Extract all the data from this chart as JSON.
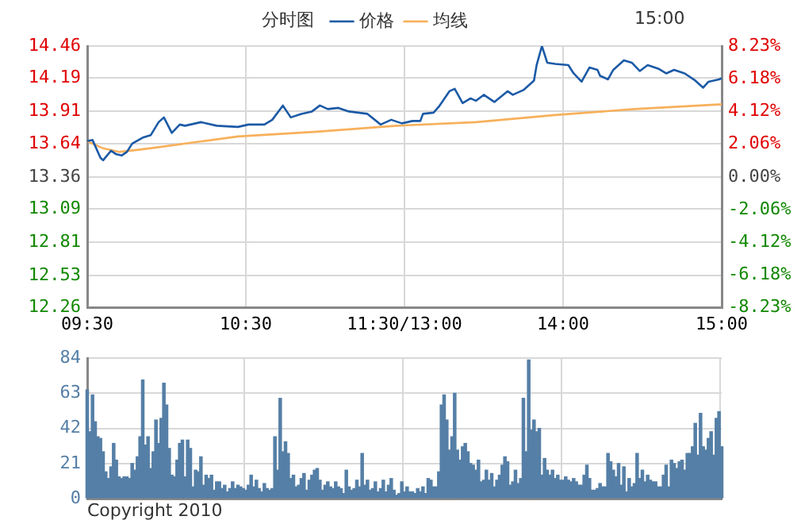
{
  "chart_data": [
    {
      "type": "line",
      "title": "分时图",
      "legend": "top",
      "grid": true,
      "marker": "none",
      "categories": [
        "09:30",
        null,
        null,
        null,
        null,
        null,
        null,
        null,
        null,
        null,
        null,
        null,
        null,
        null,
        null,
        null,
        null,
        null,
        null,
        null,
        null,
        null,
        null,
        null,
        null,
        null,
        null,
        null,
        null,
        null,
        null,
        null,
        null,
        null,
        null,
        null,
        null,
        null,
        null,
        null,
        null,
        null,
        null,
        null,
        null,
        null,
        null,
        null,
        null,
        null,
        null,
        null,
        null,
        null,
        null,
        null,
        null,
        null,
        null,
        null,
        "10:30",
        null,
        null,
        null,
        null,
        null,
        null,
        null,
        null,
        null,
        null,
        null,
        null,
        null,
        null,
        null,
        null,
        null,
        null,
        null,
        null,
        null,
        null,
        null,
        null,
        null,
        null,
        null,
        null,
        null,
        null,
        null,
        null,
        null,
        null,
        null,
        null,
        null,
        null,
        null,
        null,
        null,
        null,
        null,
        null,
        null,
        null,
        null,
        null,
        null,
        null,
        null,
        null,
        null,
        null,
        null,
        null,
        null,
        null,
        null,
        "11:30/13:00",
        null,
        null,
        null,
        null,
        null,
        null,
        null,
        null,
        null,
        null,
        null,
        null,
        null,
        null,
        null,
        null,
        null,
        null,
        null,
        null,
        null,
        null,
        null,
        null,
        null,
        null,
        null,
        null,
        null,
        null,
        null,
        null,
        null,
        null,
        null,
        null,
        null,
        null,
        null,
        null,
        null,
        null,
        null,
        null,
        null,
        null,
        null,
        null,
        null,
        null,
        null,
        null,
        null,
        null,
        null,
        null,
        null,
        null,
        null,
        "14:00",
        null,
        null,
        null,
        null,
        null,
        null,
        null,
        null,
        null,
        null,
        null,
        null,
        null,
        null,
        null,
        null,
        null,
        null,
        null,
        null,
        null,
        null,
        null,
        null,
        null,
        null,
        null,
        null,
        null,
        null,
        null,
        null,
        null,
        null,
        null,
        null,
        null,
        null,
        null,
        null,
        null,
        null,
        null,
        null,
        null,
        null,
        null,
        null,
        null,
        null,
        null,
        null,
        null,
        null,
        null,
        null,
        null,
        null,
        null,
        "15:00"
      ],
      "ylim": [
        12.26,
        14.46
      ],
      "yticks": [
        12.26,
        12.53,
        12.81,
        13.09,
        13.36,
        13.64,
        13.91,
        14.19,
        14.46
      ],
      "y2lim": [
        -8.23,
        8.23
      ],
      "y2ticks": [
        {
          "value": -8.23,
          "label": "-8.23%"
        },
        {
          "value": -6.18,
          "label": "-6.18%"
        },
        {
          "value": -4.12,
          "label": "-4.12%"
        },
        {
          "value": -2.06,
          "label": "-2.06%"
        },
        {
          "value": 0,
          "label": "0.00%"
        },
        {
          "value": 2.06,
          "label": "2.06%"
        },
        {
          "value": 4.12,
          "label": "4.12%"
        },
        {
          "value": 6.18,
          "label": "6.18%"
        },
        {
          "value": 8.23,
          "label": "8.23%"
        }
      ],
      "annotations": [
        "15:00"
      ],
      "series": [
        {
          "name": "价格",
          "color": "#1c5aa6",
          "values": [
            13.66,
            null,
            13.67,
            null,
            null,
            13.52,
            13.5,
            null,
            null,
            13.58,
            null,
            13.55,
            null,
            13.54,
            null,
            13.57,
            null,
            13.64,
            null,
            null,
            null,
            13.69,
            null,
            null,
            13.71,
            null,
            null,
            13.82,
            null,
            13.86,
            null,
            null,
            13.73,
            null,
            null,
            13.8,
            null,
            13.79,
            null,
            null,
            null,
            null,
            null,
            13.82,
            null,
            null,
            null,
            null,
            null,
            13.79,
            null,
            null,
            null,
            null,
            null,
            null,
            null,
            13.78,
            null,
            null,
            null,
            13.8,
            null,
            null,
            null,
            null,
            null,
            13.8,
            null,
            null,
            13.84,
            null,
            null,
            null,
            13.96,
            null,
            null,
            13.86,
            null,
            null,
            null,
            13.89,
            null,
            null,
            null,
            13.91,
            null,
            null,
            13.96,
            null,
            null,
            13.93,
            null,
            null,
            null,
            13.94,
            null,
            null,
            null,
            13.91,
            null,
            null,
            null,
            null,
            null,
            null,
            13.89,
            null,
            null,
            null,
            null,
            13.8,
            null,
            null,
            null,
            13.84,
            null,
            null,
            null,
            13.81,
            null,
            null,
            null,
            13.83,
            null,
            null,
            13.83,
            13.89,
            null,
            null,
            null,
            13.9,
            null,
            13.95,
            null,
            null,
            null,
            14.08,
            null,
            14.1,
            null,
            null,
            13.98,
            null,
            null,
            14.02,
            null,
            14,
            null,
            null,
            14.05,
            null,
            null,
            null,
            13.99,
            null,
            null,
            null,
            null,
            14.08,
            null,
            14.05,
            null,
            null,
            null,
            14.09,
            null,
            null,
            null,
            14.17,
            14.3,
            null,
            14.46,
            null,
            14.32,
            null,
            null,
            14.31,
            null,
            null,
            null,
            null,
            14.3,
            null,
            14.23,
            null,
            null,
            14.16,
            null,
            null,
            14.28,
            null,
            null,
            14.26,
            14.21,
            null,
            null,
            14.18,
            null,
            14.26,
            null,
            null,
            null,
            14.34,
            null,
            null,
            14.32,
            null,
            null,
            14.25,
            null,
            null,
            14.3,
            null,
            null,
            null,
            14.27,
            null,
            null,
            14.23,
            null,
            null,
            14.26,
            null,
            null,
            null,
            14.23,
            null,
            null,
            null,
            14.17,
            null,
            null,
            14.11,
            null,
            14.16,
            null,
            14.17,
            null,
            14.18,
            14.19
          ]
        },
        {
          "name": "均线",
          "color": "#f7b05b",
          "values": [
            13.66,
            null,
            null,
            null,
            null,
            null,
            13.6,
            null,
            null,
            null,
            null,
            null,
            13.57,
            null,
            null,
            null,
            null,
            null,
            null,
            null,
            13.59,
            null,
            null,
            null,
            null,
            null,
            null,
            13.61,
            null,
            null,
            null,
            null,
            null,
            null,
            null,
            null,
            null,
            null,
            null,
            null,
            null,
            null,
            null,
            null,
            null,
            null,
            null,
            null,
            null,
            null,
            null,
            null,
            null,
            null,
            null,
            null,
            null,
            13.7,
            null,
            null,
            null,
            null,
            null,
            null,
            null,
            null,
            null,
            null,
            null,
            null,
            null,
            null,
            null,
            null,
            null,
            null,
            null,
            null,
            null,
            null,
            null,
            null,
            null,
            null,
            null,
            null,
            null,
            13.74,
            null,
            null,
            null,
            null,
            null,
            null,
            null,
            null,
            null,
            null,
            null,
            null,
            null,
            null,
            null,
            null,
            null,
            null,
            null,
            null,
            null,
            null,
            null,
            null,
            null,
            null,
            null,
            null,
            null,
            13.79,
            null,
            null,
            null,
            null,
            null,
            null,
            null,
            null,
            null,
            null,
            null,
            null,
            null,
            null,
            null,
            null,
            null,
            null,
            null,
            null,
            null,
            null,
            null,
            null,
            null,
            null,
            null,
            null,
            null,
            13.82,
            null,
            null,
            null,
            null,
            null,
            null,
            null,
            null,
            null,
            null,
            null,
            null,
            null,
            null,
            null,
            null,
            null,
            null,
            null,
            null,
            null,
            null,
            null,
            null,
            null,
            null,
            null,
            null,
            null,
            13.88,
            null,
            null,
            null,
            null,
            null,
            null,
            null,
            null,
            null,
            null,
            null,
            null,
            null,
            null,
            null,
            null,
            null,
            null,
            null,
            null,
            null,
            null,
            null,
            null,
            null,
            null,
            null,
            null,
            null,
            13.93,
            null,
            null,
            null,
            null,
            null,
            null,
            null,
            null,
            null,
            null,
            null,
            null,
            null,
            null,
            null,
            null,
            null,
            null,
            null,
            null,
            null,
            null,
            null,
            null,
            null,
            null,
            null,
            null,
            null,
            null,
            null,
            null,
            13.97
          ]
        }
      ]
    },
    {
      "type": "bar",
      "grid": true,
      "tick_labels": "y",
      "color": "#557fa6",
      "categories": [
        null,
        null,
        null,
        null,
        null,
        null,
        null,
        null,
        null,
        null,
        null,
        null,
        null,
        null,
        null,
        null,
        null,
        null,
        null,
        null,
        null,
        null,
        null,
        null,
        null,
        null,
        null,
        null,
        null,
        null,
        null,
        null,
        null,
        null,
        null,
        null,
        null,
        null,
        null,
        null,
        null,
        null,
        null,
        null,
        null,
        null,
        null,
        null,
        null,
        null,
        null,
        null,
        null,
        null,
        null,
        null,
        null,
        null,
        null,
        null,
        null,
        null,
        null,
        null,
        null,
        null,
        null,
        null,
        null,
        null,
        null,
        null,
        null,
        null,
        null,
        null,
        null,
        null,
        null,
        null,
        null,
        null,
        null,
        null,
        null,
        null,
        null,
        null,
        null,
        null,
        null,
        null,
        null,
        null,
        null,
        null,
        null,
        null,
        null,
        null,
        null,
        null,
        null,
        null,
        null,
        null,
        null,
        null,
        null,
        null,
        null,
        null,
        null,
        null,
        null,
        null,
        null,
        null,
        null,
        null,
        null,
        null,
        null,
        null,
        null,
        null,
        null,
        null,
        null,
        null,
        null,
        null,
        null,
        null,
        null,
        null,
        null,
        null,
        null,
        null,
        null,
        null,
        null,
        null,
        null,
        null,
        null,
        null,
        null,
        null,
        null,
        null,
        null,
        null,
        null,
        null,
        null,
        null,
        null,
        null,
        null,
        null,
        null,
        null,
        null,
        null,
        null,
        null,
        null,
        null,
        null,
        null,
        null,
        null,
        null,
        null,
        null,
        null,
        null,
        null,
        null,
        null,
        null,
        null,
        null,
        null,
        null,
        null,
        null,
        null,
        null,
        null,
        null,
        null,
        null,
        null,
        null,
        null,
        null,
        null,
        null,
        null,
        null,
        null,
        null,
        null,
        null,
        null,
        null,
        null,
        null,
        null,
        null,
        null,
        null,
        null,
        null,
        null,
        null,
        null,
        null,
        null,
        null,
        null,
        null,
        null,
        null,
        null,
        null,
        null,
        null,
        null,
        null,
        null,
        null,
        null,
        null,
        null,
        null,
        null,
        null
      ],
      "ylim": [
        0,
        84
      ],
      "yticks": [
        0,
        21,
        42,
        63,
        84
      ],
      "annotations": [
        "Copyright 2010"
      ],
      "values": [
        65,
        40,
        62,
        46,
        37,
        36,
        28,
        16,
        12,
        19,
        33,
        23,
        13,
        12,
        13,
        13,
        12,
        21,
        17,
        25,
        37,
        71,
        32,
        37,
        18,
        28,
        47,
        33,
        48,
        69,
        56,
        30,
        14,
        13,
        23,
        33,
        35,
        13,
        35,
        30,
        7,
        17,
        16,
        25,
        8,
        14,
        12,
        14,
        5,
        10,
        10,
        6,
        8,
        4,
        6,
        10,
        6,
        8,
        7,
        6,
        5,
        8,
        14,
        7,
        11,
        6,
        4,
        9,
        6,
        5,
        6,
        37,
        17,
        60,
        28,
        34,
        27,
        12,
        14,
        7,
        8,
        12,
        15,
        5,
        11,
        14,
        17,
        18,
        11,
        5,
        8,
        10,
        7,
        6,
        10,
        7,
        6,
        3,
        17,
        7,
        5,
        6,
        11,
        7,
        27,
        8,
        11,
        5,
        6,
        10,
        4,
        6,
        11,
        4,
        8,
        12,
        5,
        2,
        3,
        10,
        4,
        7,
        4,
        4,
        3,
        6,
        4,
        7,
        3,
        12,
        11,
        7,
        7,
        16,
        56,
        62,
        47,
        29,
        37,
        63,
        29,
        23,
        31,
        33,
        28,
        21,
        20,
        17,
        23,
        10,
        11,
        17,
        11,
        15,
        7,
        11,
        14,
        20,
        25,
        22,
        8,
        10,
        17,
        9,
        12,
        60,
        28,
        83,
        41,
        47,
        40,
        42,
        14,
        24,
        17,
        14,
        17,
        12,
        14,
        11,
        11,
        13,
        11,
        10,
        12,
        10,
        8,
        8,
        14,
        20,
        12,
        5,
        5,
        6,
        9,
        7,
        7,
        27,
        22,
        17,
        13,
        21,
        8,
        19,
        4,
        12,
        7,
        9,
        27,
        12,
        17,
        10,
        14,
        11,
        10,
        10,
        7,
        7,
        14,
        20,
        7,
        23,
        21,
        18,
        22,
        23,
        17,
        27,
        27,
        31,
        45,
        26,
        51,
        31,
        29,
        36,
        40,
        26,
        48,
        52,
        31
      ]
    }
  ]
}
